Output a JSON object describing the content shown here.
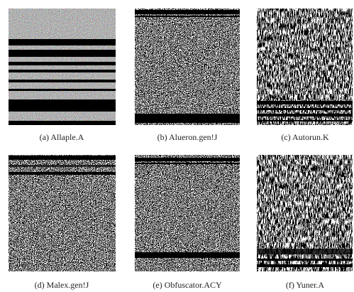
{
  "figure": {
    "panels": [
      {
        "caption": "(a) Allaple.A"
      },
      {
        "caption": "(b) Alueron.gen!J"
      },
      {
        "caption": "(c) Autorun.K"
      },
      {
        "caption": "(d) Malex.gen!J"
      },
      {
        "caption": "(e) Obfuscator.ACY"
      },
      {
        "caption": "(f) Yuner.A"
      }
    ]
  }
}
